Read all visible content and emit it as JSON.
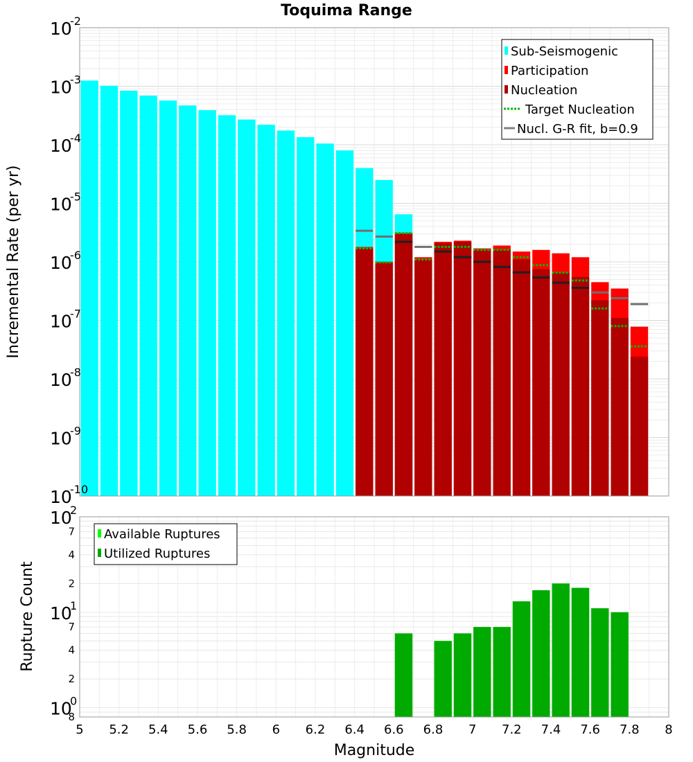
{
  "chart_data": [
    {
      "type": "bar",
      "title": "Toquima Range",
      "xlabel": "",
      "ylabel": "Incremental Rate (per yr)",
      "yscale": "log",
      "ylim": [
        1e-10,
        0.01
      ],
      "xlim": [
        5,
        8
      ],
      "grid": true,
      "legend_position": "top-right",
      "y_decade_ticks": [
        {
          "base": "10",
          "exp": "-2",
          "value": 0.01
        },
        {
          "base": "10",
          "exp": "-3",
          "value": 0.001
        },
        {
          "base": "10",
          "exp": "-4",
          "value": 0.0001
        },
        {
          "base": "10",
          "exp": "-5",
          "value": 1e-05
        },
        {
          "base": "10",
          "exp": "-6",
          "value": 1e-06
        },
        {
          "base": "10",
          "exp": "-7",
          "value": 1e-07
        },
        {
          "base": "10",
          "exp": "-8",
          "value": 1e-08
        },
        {
          "base": "10",
          "exp": "-9",
          "value": 1e-09
        },
        {
          "base": "10",
          "exp": "-10",
          "value": 1e-10
        }
      ],
      "legend": [
        {
          "label": "Sub-Seismogenic",
          "color": "#00ffff",
          "kind": "bar"
        },
        {
          "label": "Participation",
          "color": "#ff0000",
          "kind": "bar"
        },
        {
          "label": "Nucleation",
          "color": "#b00000",
          "kind": "bar"
        },
        {
          "label": "Target Nucleation",
          "color": "#00bb00",
          "kind": "dotted"
        },
        {
          "label": "Nucl. G-R fit, b=0.9",
          "color": "#808080",
          "kind": "line"
        }
      ],
      "series": [
        {
          "name": "Sub-Seismogenic",
          "color": "#00ffff",
          "x": [
            5.05,
            5.15,
            5.25,
            5.35,
            5.45,
            5.55,
            5.65,
            5.75,
            5.85,
            5.95,
            6.05,
            6.15,
            6.25,
            6.35,
            6.45,
            6.55,
            6.65
          ],
          "values": [
            0.00125,
            0.00102,
            0.00084,
            0.00069,
            0.00057,
            0.00047,
            0.00039,
            0.00032,
            0.00027,
            0.00022,
            0.000175,
            0.000135,
            0.000105,
            8e-05,
            4e-05,
            2.5e-05,
            6.5e-06
          ]
        },
        {
          "name": "Participation",
          "color": "#ff0000",
          "x": [
            6.45,
            6.55,
            6.65,
            6.75,
            6.85,
            6.95,
            7.05,
            7.15,
            7.25,
            7.35,
            7.45,
            7.55,
            7.65,
            7.75,
            7.85
          ],
          "values": [
            1.8e-06,
            1e-06,
            3.1e-06,
            1.2e-06,
            2.2e-06,
            2.3e-06,
            1.7e-06,
            1.9e-06,
            1.5e-06,
            1.6e-06,
            1.4e-06,
            1.2e-06,
            4.5e-07,
            3.5e-07,
            7.8e-08
          ]
        },
        {
          "name": "Nucleation",
          "color": "#b00000",
          "x": [
            6.45,
            6.55,
            6.65,
            6.75,
            6.85,
            6.95,
            7.05,
            7.15,
            7.25,
            7.35,
            7.45,
            7.55,
            7.65,
            7.75,
            7.85
          ],
          "values": [
            1.7e-06,
            9.5e-07,
            3e-06,
            1.1e-06,
            2.1e-06,
            2.2e-06,
            1.6e-06,
            1.6e-06,
            1.1e-06,
            7.5e-07,
            6.5e-07,
            5.5e-07,
            2.2e-07,
            1.1e-07,
            2.4e-08
          ]
        },
        {
          "name": "Target Nucleation",
          "color": "#00bb00",
          "x": [
            6.45,
            6.55,
            6.65,
            6.75,
            6.85,
            6.95,
            7.05,
            7.15,
            7.25,
            7.35,
            7.45,
            7.55,
            7.65,
            7.75,
            7.85
          ],
          "values": [
            1.7e-06,
            9.8e-07,
            3.1e-06,
            1.1e-06,
            1.8e-06,
            1.8e-06,
            1.6e-06,
            1.6e-06,
            1.2e-06,
            8.8e-07,
            6.5e-07,
            4.8e-07,
            1.6e-07,
            8e-08,
            3.6e-08
          ]
        },
        {
          "name": "Nucl. G-R fit, b=0.9",
          "color": "#808080",
          "x": [
            6.45,
            6.55,
            6.65,
            6.75,
            6.85,
            6.95,
            7.05,
            7.15,
            7.25,
            7.35,
            7.45,
            7.55,
            7.65,
            7.75,
            7.85
          ],
          "values": [
            3.4e-06,
            2.7e-06,
            2.2e-06,
            1.8e-06,
            1.5e-06,
            1.2e-06,
            1e-06,
            8.2e-07,
            6.6e-07,
            5.4e-07,
            4.4e-07,
            3.6e-07,
            3e-07,
            2.4e-07,
            1.9e-07
          ]
        }
      ]
    },
    {
      "type": "bar",
      "title": "",
      "xlabel": "Magnitude",
      "ylabel": "Rupture Count",
      "yscale": "log",
      "ylim": [
        0.8,
        100
      ],
      "xlim": [
        5,
        8
      ],
      "grid": true,
      "legend_position": "top-left",
      "x_ticks": [
        "5",
        "5.2",
        "5.4",
        "5.6",
        "5.8",
        "6",
        "6.2",
        "6.4",
        "6.6",
        "6.8",
        "7",
        "7.2",
        "7.4",
        "7.6",
        "7.8",
        "8"
      ],
      "y_decade_ticks": [
        {
          "base": "10",
          "exp": "2",
          "value": 100
        },
        {
          "base": "10",
          "exp": "1",
          "value": 10
        },
        {
          "base": "10",
          "exp": "0",
          "value": 1
        }
      ],
      "y_minor_ticks": [
        {
          "label": "7",
          "value": 70
        },
        {
          "label": "4",
          "value": 40
        },
        {
          "label": "2",
          "value": 20
        },
        {
          "label": "7",
          "value": 7
        },
        {
          "label": "4",
          "value": 4
        },
        {
          "label": "2",
          "value": 2
        },
        {
          "label": "8",
          "value": 0.8
        }
      ],
      "legend": [
        {
          "label": "Available Ruptures",
          "color": "#00ff00",
          "kind": "bar"
        },
        {
          "label": "Utilized Ruptures",
          "color": "#00aa00",
          "kind": "bar"
        }
      ],
      "series": [
        {
          "name": "Available Ruptures",
          "color": "#00ff00",
          "x": [
            6.65,
            6.85,
            6.95,
            7.05,
            7.15,
            7.25,
            7.35,
            7.45,
            7.55,
            7.65,
            7.75
          ],
          "values": [
            6,
            5,
            6,
            7,
            7,
            13,
            17,
            20,
            18,
            11,
            10
          ]
        },
        {
          "name": "Utilized Ruptures",
          "color": "#00aa00",
          "x": [
            6.65,
            6.85,
            6.95,
            7.05,
            7.15,
            7.25,
            7.35,
            7.45,
            7.55,
            7.65,
            7.75
          ],
          "values": [
            6,
            5,
            6,
            7,
            7,
            13,
            17,
            20,
            18,
            11,
            10
          ]
        }
      ]
    }
  ]
}
